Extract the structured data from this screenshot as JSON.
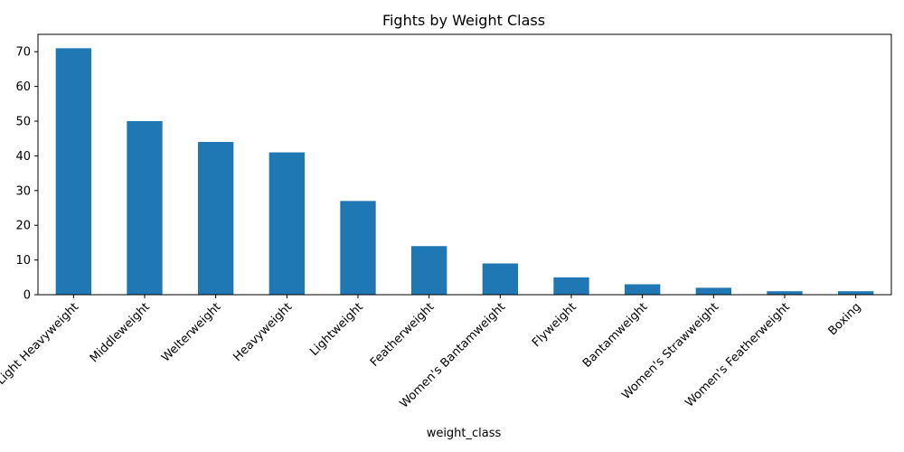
{
  "chart_data": {
    "type": "bar",
    "title": "Fights by Weight Class",
    "xlabel": "weight_class",
    "ylabel": "",
    "ylim": [
      0,
      75
    ],
    "yticks": [
      0,
      10,
      20,
      30,
      40,
      50,
      60,
      70
    ],
    "grid": false,
    "legend": "none",
    "bar_color": "#1f77b4",
    "categories": [
      "Light Heavyweight",
      "Middleweight",
      "Welterweight",
      "Heavyweight",
      "Lightweight",
      "Featherweight",
      "Women's Bantamweight",
      "Flyweight",
      "Bantamweight",
      "Women's Strawweight",
      "Women's Featherweight",
      "Boxing"
    ],
    "values": [
      71,
      50,
      44,
      41,
      27,
      14,
      9,
      5,
      3,
      2,
      1,
      1
    ]
  }
}
